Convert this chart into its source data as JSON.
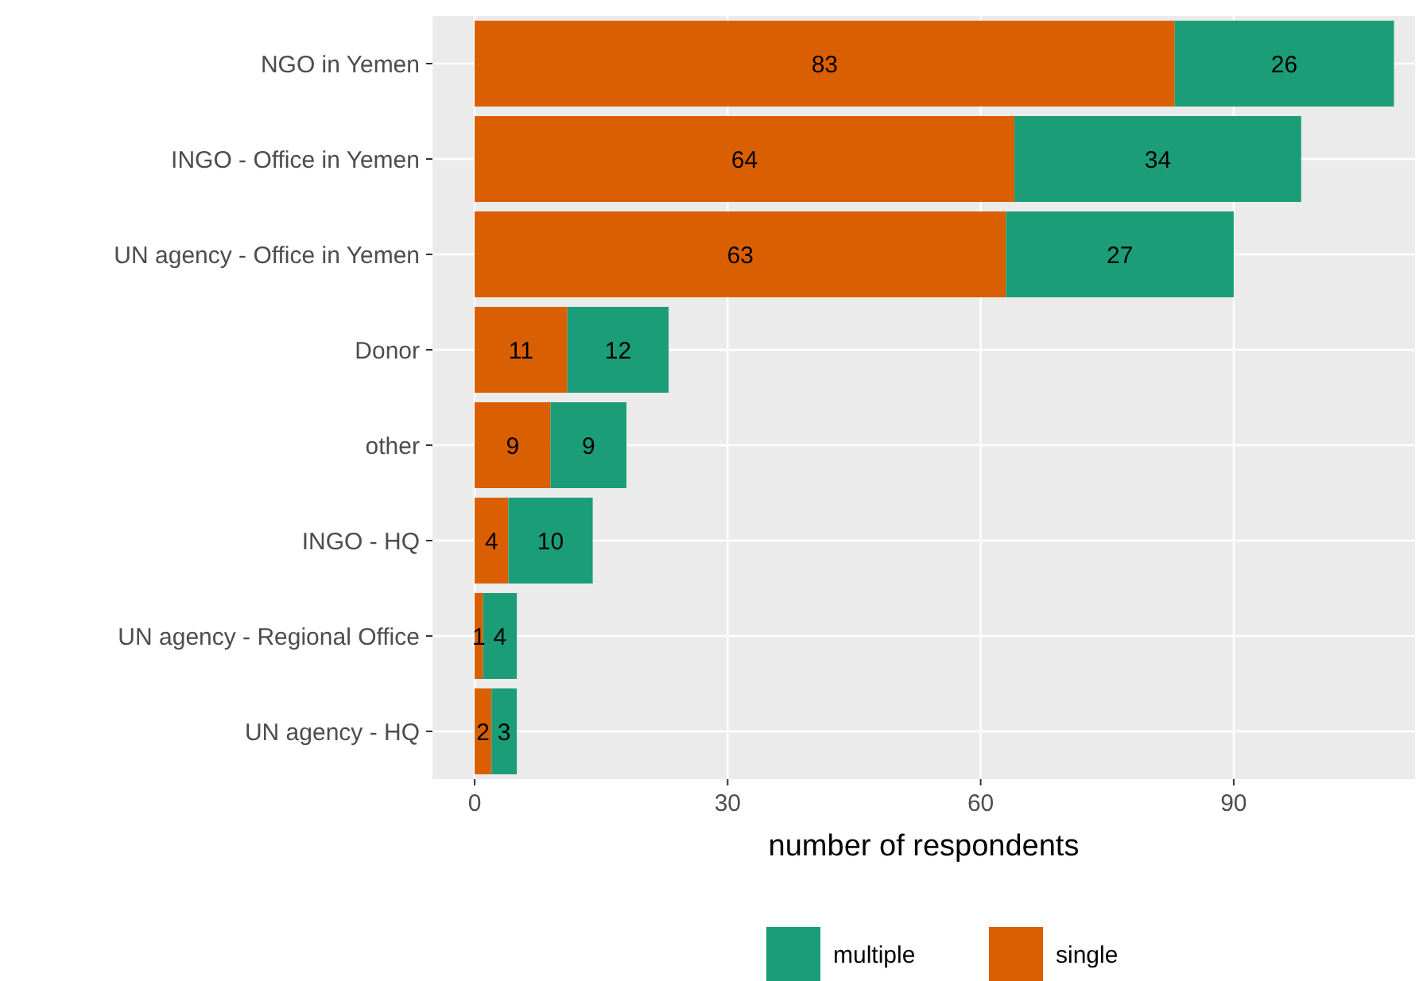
{
  "chart_data": {
    "type": "bar",
    "orientation": "horizontal",
    "stacked": true,
    "xlabel": "number of respondents",
    "categories": [
      "NGO in Yemen",
      "INGO - Office in Yemen",
      "UN agency - Office in Yemen",
      "Donor",
      "other",
      "INGO - HQ",
      "UN agency - Regional Office",
      "UN agency - HQ"
    ],
    "series": [
      {
        "name": "single",
        "color": "#d95f02",
        "values": [
          83,
          64,
          63,
          11,
          9,
          4,
          1,
          2
        ]
      },
      {
        "name": "multiple",
        "color": "#1b9e77",
        "values": [
          26,
          34,
          27,
          12,
          9,
          10,
          4,
          3
        ]
      }
    ],
    "xlim": [
      -5,
      111.5
    ],
    "xticks": [
      0,
      30,
      60,
      90
    ],
    "grid": true,
    "legend": "bottom",
    "data_labels": true
  }
}
